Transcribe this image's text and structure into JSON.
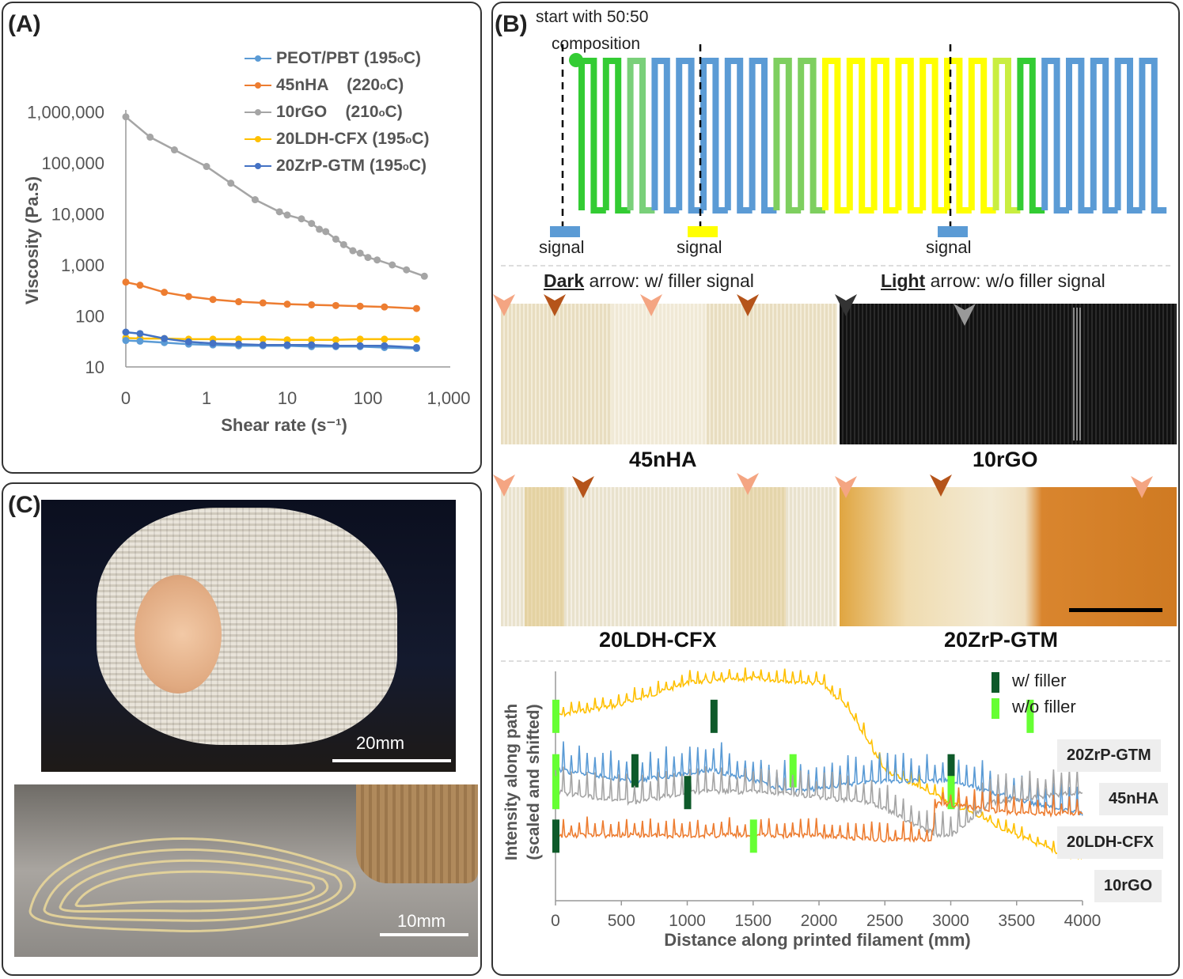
{
  "panel_a": {
    "label": "(A)",
    "legend": [
      {
        "name": "PEOT/PBT (195°C)",
        "text": "PEOT/PBT (195",
        "sup": "o",
        "tail": "C)",
        "color": "#5b9bd5"
      },
      {
        "name": "45nHA (220°C)",
        "text": "45nHA    (220",
        "sup": "o",
        "tail": "C)",
        "color": "#ed7d31"
      },
      {
        "name": "10rGO (210°C)",
        "text": "10rGO    (210",
        "sup": "o",
        "tail": "C)",
        "color": "#a5a5a5"
      },
      {
        "name": "20LDH-CFX (195°C)",
        "text": "20LDH-CFX (195",
        "sup": "o",
        "tail": "C)",
        "color": "#ffc000"
      },
      {
        "name": "20ZrP-GTM (195°C)",
        "text": "20ZrP-GTM (195",
        "sup": "o",
        "tail": "C)",
        "color": "#4472c4"
      }
    ]
  },
  "chart_data": [
    {
      "type": "line",
      "title": "",
      "xlabel": "Shear rate (s⁻¹)",
      "ylabel": "Viscosity (Pa.s)",
      "xscale": "log",
      "yscale": "log",
      "x_tick_labels": [
        "0",
        "1",
        "10",
        "100",
        "1,000"
      ],
      "y_tick_labels": [
        "10",
        "100",
        "1,000",
        "10,000",
        "100,000",
        "1,000,000"
      ],
      "series": [
        {
          "name": "10rGO (210°C)",
          "color": "#a5a5a5",
          "x": [
            0.1,
            0.2,
            0.4,
            1,
            2,
            4,
            8,
            10,
            15,
            20,
            25,
            30,
            40,
            50,
            65,
            80,
            100,
            130,
            200,
            300,
            500
          ],
          "y": [
            800000,
            320000,
            180000,
            85000,
            40000,
            19000,
            11000,
            9500,
            8000,
            6500,
            5000,
            4500,
            3200,
            2500,
            1900,
            1700,
            1400,
            1250,
            1000,
            800,
            600
          ]
        },
        {
          "name": "45nHA (220°C)",
          "color": "#ed7d31",
          "x": [
            0.1,
            0.15,
            0.3,
            0.6,
            1.2,
            2.5,
            5,
            10,
            20,
            40,
            80,
            160,
            400
          ],
          "y": [
            460,
            400,
            290,
            240,
            210,
            190,
            180,
            170,
            165,
            160,
            155,
            150,
            140
          ]
        },
        {
          "name": "20LDH-CFX (195°C)",
          "color": "#ffc000",
          "x": [
            0.1,
            0.15,
            0.3,
            0.6,
            1.2,
            2.5,
            5,
            10,
            20,
            40,
            80,
            160,
            400
          ],
          "y": [
            37,
            36,
            36,
            35,
            35,
            35,
            35,
            34,
            34,
            34,
            35,
            35,
            35
          ]
        },
        {
          "name": "PEOT/PBT (195°C)",
          "color": "#5b9bd5",
          "x": [
            0.1,
            0.15,
            0.3,
            0.6,
            1.2,
            2.5,
            5,
            10,
            20,
            40,
            80,
            160,
            400
          ],
          "y": [
            33,
            32,
            30,
            28,
            27,
            26,
            26,
            26,
            25,
            25,
            25,
            24,
            23
          ]
        },
        {
          "name": "20ZrP-GTM (195°C)",
          "color": "#4472c4",
          "x": [
            0.1,
            0.15,
            0.3,
            0.6,
            1.2,
            2.5,
            5,
            10,
            20,
            40,
            80,
            160,
            400
          ],
          "y": [
            48,
            45,
            36,
            31,
            29,
            28,
            27,
            27,
            27,
            26,
            26,
            26,
            24
          ]
        }
      ]
    },
    {
      "type": "line",
      "title": "",
      "xlabel": "Distance along printed filament (mm)",
      "ylabel": "Intensity along path (scaled and shifted)",
      "xlim": [
        0,
        4000
      ],
      "x_ticks": [
        0,
        500,
        1000,
        1500,
        2000,
        2500,
        3000,
        3500,
        4000
      ],
      "series": [
        {
          "name": "20ZrP-GTM",
          "color": "#ffc000",
          "x": [
            0,
            500,
            1000,
            1500,
            2000,
            2200,
            2500,
            3000,
            3500,
            3900
          ],
          "y": [
            0.85,
            0.9,
            1.0,
            1.02,
            1.0,
            0.9,
            0.6,
            0.45,
            0.3,
            0.2
          ],
          "w_filler_mm": [
            1200
          ],
          "wo_filler_mm": [
            0,
            3600
          ]
        },
        {
          "name": "45nHA",
          "color": "#5b9bd5",
          "x": [
            0,
            600,
            1200,
            1800,
            2400,
            3000,
            3600,
            4000
          ],
          "y": [
            0.6,
            0.55,
            0.6,
            0.5,
            0.55,
            0.55,
            0.45,
            0.4
          ],
          "w_filler_mm": [
            600,
            3000
          ],
          "wo_filler_mm": [
            0,
            1800
          ]
        },
        {
          "name": "20LDH-CFX",
          "color": "#a5a5a5",
          "x": [
            0,
            600,
            1000,
            1600,
            2400,
            2900,
            3000,
            3300,
            4000
          ],
          "y": [
            0.5,
            0.45,
            0.5,
            0.5,
            0.45,
            0.3,
            0.3,
            0.45,
            0.5
          ],
          "w_filler_mm": [
            1000
          ],
          "wo_filler_mm": [
            0,
            3000
          ]
        },
        {
          "name": "10rGO",
          "color": "#ed7d31",
          "x": [
            0,
            500,
            1000,
            1500,
            2000,
            2500,
            2850,
            2900,
            3500,
            4000
          ],
          "y": [
            0.3,
            0.3,
            0.3,
            0.3,
            0.3,
            0.28,
            0.28,
            0.45,
            0.4,
            0.4
          ],
          "w_filler_mm": [
            0
          ],
          "wo_filler_mm": [
            1500
          ]
        }
      ],
      "legend": [
        "w/ filler",
        "w/o filler"
      ]
    }
  ],
  "panel_b": {
    "label": "(B)",
    "start_note_line1": "start with 50:50",
    "start_note_line2": "composition",
    "signal_label": "signal",
    "arrow_legend": {
      "dark_word": "Dark",
      "dark_rest": " arrow: w/ filler signal",
      "light_word": "Light",
      "light_rest": " arrow: w/o filler signal"
    },
    "samples": [
      "45nHA",
      "10rGO",
      "20LDH-CFX",
      "20ZrP-GTM"
    ],
    "legend_w": "w/ filler",
    "legend_wo": "w/o filler",
    "colors": {
      "blue": "#5b9bd5",
      "yellow": "#ffff00",
      "green": "#33cc33",
      "dark_green": "#0e5a2a",
      "light_green": "#66ff33"
    }
  },
  "panel_c": {
    "label": "(C)",
    "scale_top": "20mm",
    "scale_bottom": "10mm"
  }
}
